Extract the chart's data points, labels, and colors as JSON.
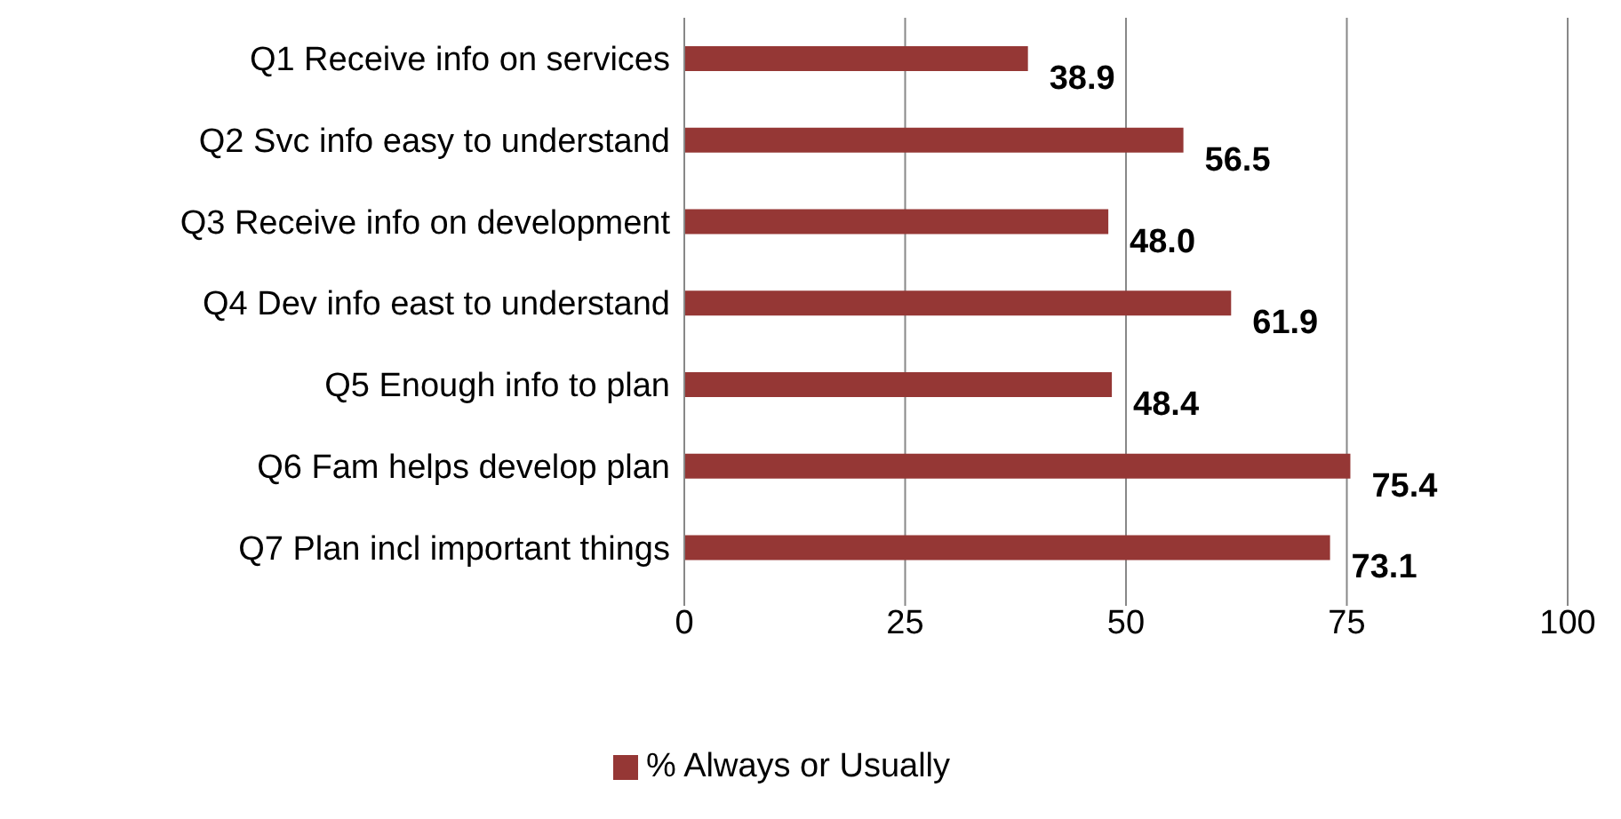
{
  "chart_data": {
    "type": "bar",
    "orientation": "horizontal",
    "categories": [
      "Q1 Receive info on services",
      "Q2 Svc info easy to understand",
      "Q3 Receive info on development",
      "Q4 Dev info east to understand",
      "Q5 Enough  info to plan",
      "Q6 Fam helps develop plan",
      "Q7 Plan incl important  things"
    ],
    "series": [
      {
        "name": "% Always or Usually",
        "color": "#953735",
        "values": [
          38.9,
          56.5,
          48.0,
          61.9,
          48.4,
          75.4,
          73.1
        ]
      }
    ],
    "value_labels": [
      "38.9",
      "56.5",
      "48.0",
      "61.9",
      "48.4",
      "75.4",
      "73.1"
    ],
    "xlim": [
      0,
      100
    ],
    "xticks": [
      0,
      25,
      50,
      75,
      100
    ],
    "grid": "x",
    "legend": "bottom"
  }
}
